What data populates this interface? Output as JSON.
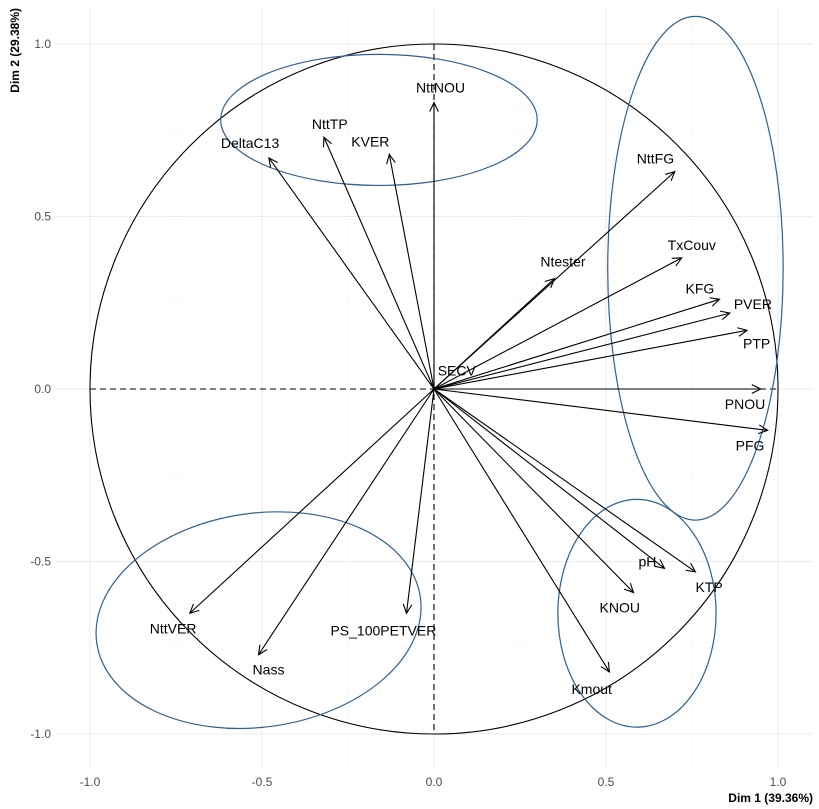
{
  "chart_data": {
    "type": "scatter",
    "subtype": "pca-correlation-circle",
    "xlabel": "Dim 1 (39.36%)",
    "ylabel": "Dim 2 (29.38%)",
    "xlim": [
      -1.1,
      1.1
    ],
    "ylim": [
      -1.1,
      1.1
    ],
    "xticks": [
      "-1.0",
      "-0.5",
      "0.0",
      "0.5",
      "1.0"
    ],
    "yticks": [
      "-1.0",
      "-0.5",
      "0.0",
      "0.5",
      "1.0"
    ],
    "grid": true,
    "unit_circle": true,
    "colors": {
      "arrows": "#000000",
      "ellipses": "#2f6090",
      "grid": "#ebebeb"
    },
    "variables": [
      {
        "name": "NttNOU",
        "x": 0.0,
        "y": 0.83
      },
      {
        "name": "NttTP",
        "x": -0.32,
        "y": 0.73
      },
      {
        "name": "DeltaC13",
        "x": -0.48,
        "y": 0.67
      },
      {
        "name": "KVER",
        "x": -0.13,
        "y": 0.68
      },
      {
        "name": "NttFG",
        "x": 0.7,
        "y": 0.63
      },
      {
        "name": "Ntester",
        "x": 0.35,
        "y": 0.32
      },
      {
        "name": "TxCouv",
        "x": 0.72,
        "y": 0.38
      },
      {
        "name": "KFG",
        "x": 0.83,
        "y": 0.26
      },
      {
        "name": "PVER",
        "x": 0.86,
        "y": 0.22
      },
      {
        "name": "PTP",
        "x": 0.91,
        "y": 0.17
      },
      {
        "name": "SECV",
        "x": 0.005,
        "y": 0.005
      },
      {
        "name": "PNOU",
        "x": 0.95,
        "y": 0.0
      },
      {
        "name": "PFG",
        "x": 0.97,
        "y": -0.12
      },
      {
        "name": "pH",
        "x": 0.67,
        "y": -0.52
      },
      {
        "name": "KTP",
        "x": 0.76,
        "y": -0.53
      },
      {
        "name": "KNOU",
        "x": 0.58,
        "y": -0.59
      },
      {
        "name": "Kmout",
        "x": 0.51,
        "y": -0.82
      },
      {
        "name": "NttVER",
        "x": -0.71,
        "y": -0.65
      },
      {
        "name": "Nass",
        "x": -0.51,
        "y": -0.77
      },
      {
        "name": "PS_100PETVER",
        "x": -0.08,
        "y": -0.65
      }
    ],
    "groups": [
      {
        "cx": -0.16,
        "cy": 0.78,
        "rx": 0.46,
        "ry": 0.19,
        "rotate": 0
      },
      {
        "cx": 0.76,
        "cy": 0.35,
        "rx": 0.255,
        "ry": 0.73,
        "rotate": 0
      },
      {
        "cx": 0.59,
        "cy": -0.65,
        "rx": 0.23,
        "ry": 0.33,
        "rotate": 0
      },
      {
        "cx": -0.51,
        "cy": -0.67,
        "rx": 0.475,
        "ry": 0.31,
        "rotate": -8
      }
    ]
  }
}
